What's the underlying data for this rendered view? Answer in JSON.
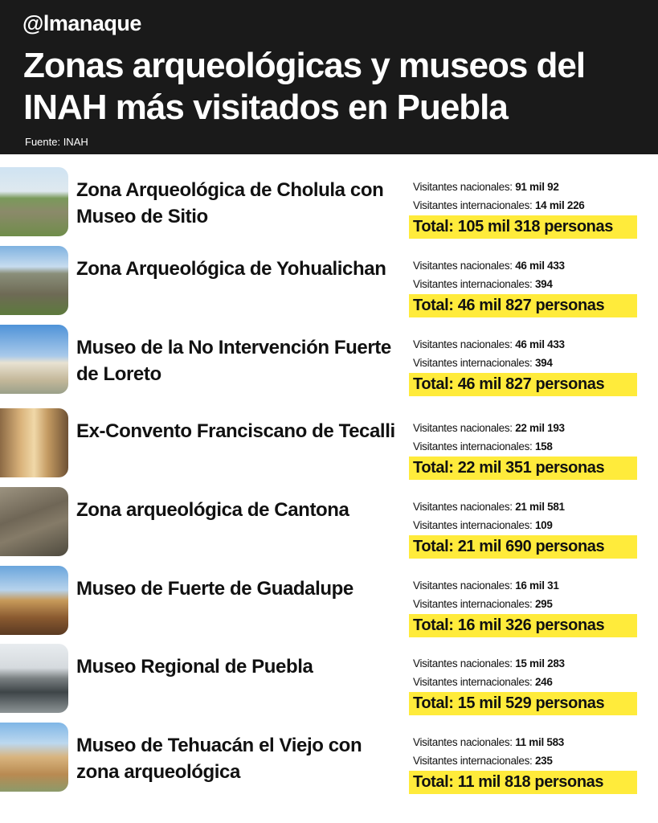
{
  "header": {
    "logo": "@lmanaque",
    "title": "Zonas arqueológicas y museos del INAH más visitados en Puebla",
    "source": "Fuente: INAH"
  },
  "labels": {
    "national": "Visitantes nacionales: ",
    "international": "Visitantes internacionales: "
  },
  "sites": [
    {
      "name": "Zona Arqueológica de Cholula con Museo de Sitio",
      "national": "91 mil 92",
      "international": "14 mil 226",
      "total": "Total: 105 mil 318 personas",
      "image": "pyramid-landscape"
    },
    {
      "name": "Zona Arqueológica de Yohualichan",
      "national": "46 mil 433",
      "international": "394",
      "total": "Total: 46 mil 827 personas",
      "image": "niche-pyramid"
    },
    {
      "name": "Museo de la No Intervención Fuerte de Loreto",
      "national": "46 mil 433",
      "international": "394",
      "total": "Total: 46 mil 827 personas",
      "image": "fort-building"
    },
    {
      "name": "Ex-Convento Franciscano de Tecalli",
      "national": "22 mil 193",
      "international": "158",
      "total": "Total: 22 mil 351 personas",
      "image": "convent-ruins"
    },
    {
      "name": "Zona arqueológica de Cantona",
      "national": "21 mil 581",
      "international": "109",
      "total": "Total: 21 mil 690 personas",
      "image": "stone-steps"
    },
    {
      "name": "Museo de Fuerte de Guadalupe",
      "national": "16 mil 31",
      "international": "295",
      "total": "Total: 16 mil 326 personas",
      "image": "fort-museum"
    },
    {
      "name": "Museo Regional de Puebla",
      "national": "15 mil 283",
      "international": "246",
      "total": "Total: 15 mil 529 personas",
      "image": "modern-museum"
    },
    {
      "name": "Museo de Tehuacán el Viejo con zona arqueológica",
      "national": "11 mil 583",
      "international": "235",
      "total": "Total: 11 mil 818 personas",
      "image": "adobe-pyramid"
    }
  ],
  "colors": {
    "header_bg": "#1a1a1a",
    "highlight": "#ffeb3b"
  }
}
